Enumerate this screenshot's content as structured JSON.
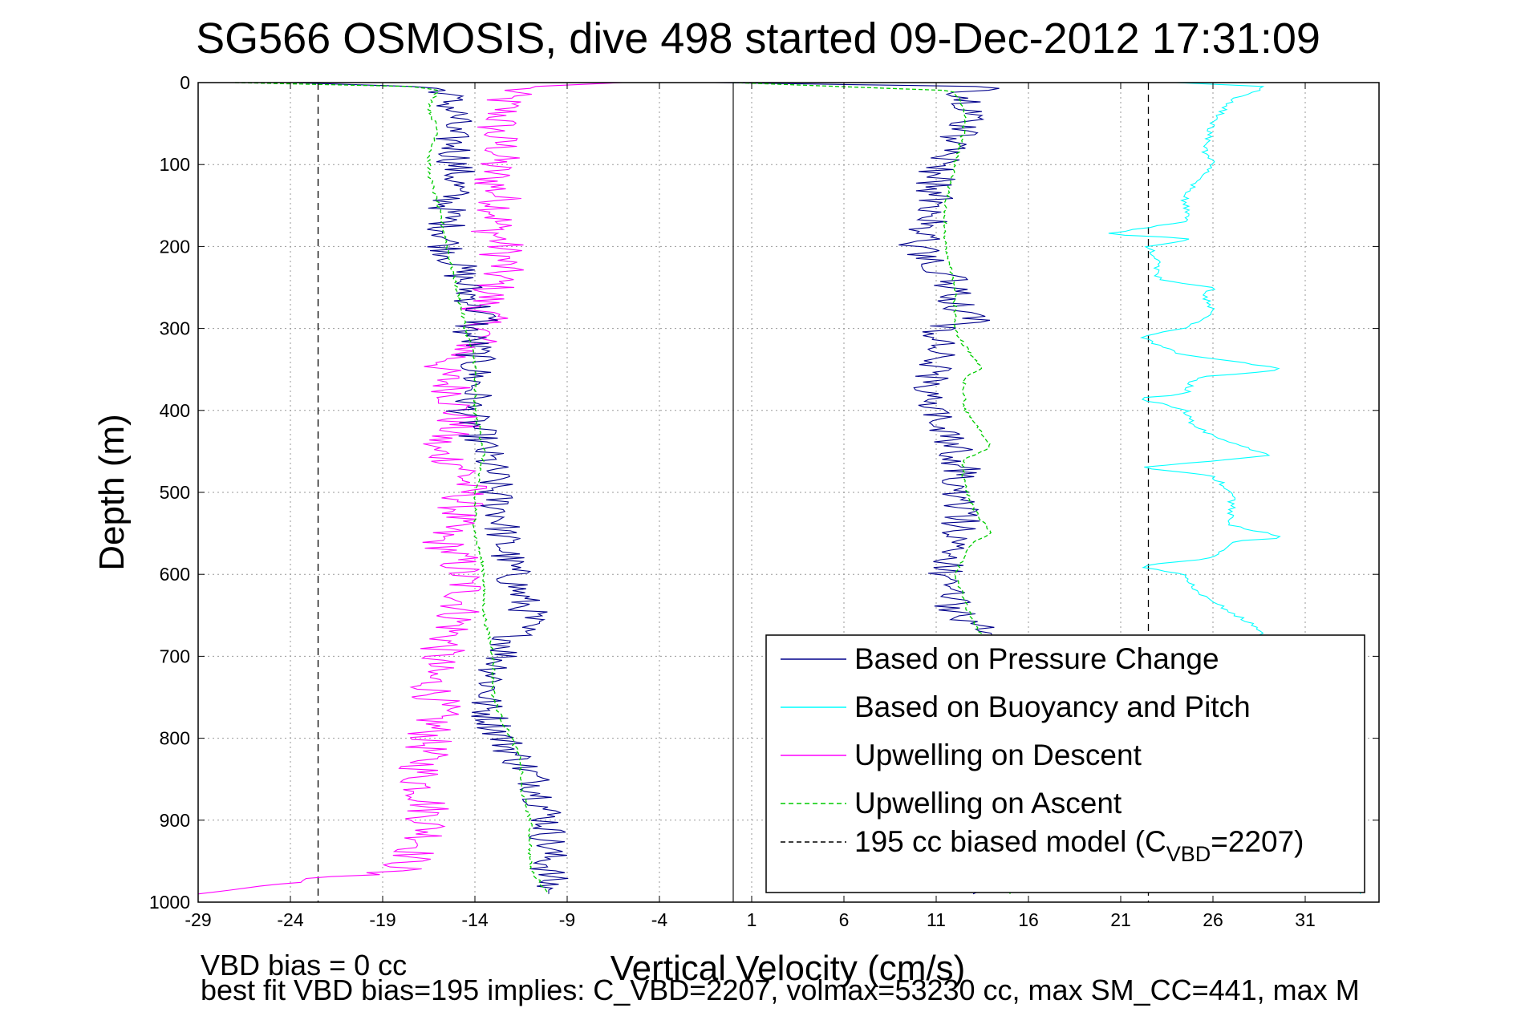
{
  "chart_data": {
    "type": "line",
    "title": "SG566 OSMOSIS, dive 498 started 09-Dec-2012 17:31:09",
    "xlabel": "Vertical Velocity (cm/s)",
    "ylabel": "Depth (m)",
    "xlim": [
      -29,
      35
    ],
    "ylim": [
      0,
      1000
    ],
    "y_reversed": true,
    "grid": true,
    "xticks": [
      -29,
      -24,
      -19,
      -14,
      -9,
      -4,
      1,
      6,
      11,
      16,
      21,
      26,
      31
    ],
    "yticks": [
      0,
      100,
      200,
      300,
      400,
      500,
      600,
      700,
      800,
      900,
      1000
    ],
    "legend_position": "bottom-right",
    "reference_lines": [
      {
        "name": "195 cc biased model (C_VBD=2207) descent",
        "x": -22.5
      },
      {
        "name": "195 cc biased model (C_VBD=2207) ascent",
        "x": 22.5
      },
      {
        "name": "zero velocity",
        "x": 0
      }
    ],
    "series": [
      {
        "name": "Based on Pressure Change",
        "color": "#00008B",
        "style": "solid",
        "descent": {
          "depth": [
            0,
            5,
            10,
            20,
            40,
            60,
            80,
            100,
            120,
            150,
            180,
            200,
            220,
            250,
            270,
            290,
            300,
            320,
            350,
            380,
            400,
            420,
            450,
            480,
            500,
            530,
            560,
            600,
            630,
            650,
            680,
            700,
            730,
            760,
            800,
            830,
            860,
            900,
            930,
            960,
            990
          ],
          "velocity": [
            -24,
            -17,
            -15.5,
            -15.5,
            -15,
            -15.5,
            -15,
            -15,
            -15,
            -15.5,
            -15.5,
            -15.5,
            -15,
            -14.5,
            -14,
            -13.5,
            -14.5,
            -14,
            -14,
            -14,
            -14.5,
            -14,
            -13.5,
            -13,
            -13,
            -12.5,
            -12.5,
            -12,
            -11.5,
            -11,
            -12,
            -12.5,
            -13,
            -13.5,
            -12.5,
            -11.5,
            -10.5,
            -10,
            -10,
            -10,
            -10
          ]
        },
        "ascent": {
          "depth": [
            990,
            970,
            940,
            900,
            860,
            820,
            780,
            740,
            700,
            680,
            660,
            640,
            600,
            580,
            560,
            530,
            500,
            470,
            450,
            420,
            400,
            380,
            350,
            320,
            300,
            290,
            270,
            250,
            220,
            200,
            180,
            150,
            120,
            100,
            80,
            50,
            30,
            15,
            5,
            0
          ],
          "velocity": [
            13,
            15,
            15,
            15,
            15,
            15,
            15,
            15,
            14.5,
            14,
            13,
            12,
            11.5,
            11.5,
            12,
            12.5,
            12,
            12.5,
            12,
            11.5,
            10.5,
            10.5,
            11,
            11,
            11,
            13,
            12,
            12,
            11,
            10,
            10.5,
            11,
            11,
            11,
            12,
            12.5,
            13,
            12.5,
            14,
            -1
          ]
        }
      },
      {
        "name": "Based on Buoyancy and Pitch",
        "color": "#00FFFF",
        "style": "solid",
        "ascent": {
          "depth": [
            990,
            960,
            920,
            880,
            840,
            800,
            760,
            720,
            690,
            660,
            620,
            600,
            590,
            580,
            560,
            555,
            540,
            500,
            480,
            470,
            455,
            440,
            420,
            400,
            385,
            380,
            360,
            350,
            330,
            310,
            300,
            280,
            260,
            250,
            240,
            220,
            200,
            190,
            185,
            170,
            140,
            120,
            100,
            80,
            50,
            20,
            5,
            0
          ],
          "velocity": [
            34,
            33.5,
            33,
            32.5,
            31.5,
            31,
            30.5,
            30,
            29.5,
            28,
            25,
            24.5,
            22,
            26,
            27,
            30,
            27,
            27,
            26,
            22,
            29,
            27,
            25,
            24.5,
            22,
            24.5,
            25,
            30,
            24,
            22,
            24.5,
            26,
            25.5,
            26,
            23,
            23,
            22.5,
            25,
            20,
            24.5,
            24.5,
            25,
            26,
            25.5,
            26,
            27,
            29,
            24
          ]
        }
      },
      {
        "name": "Upwelling on Descent",
        "color": "#FF00FF",
        "style": "solid",
        "descent": {
          "depth": [
            0,
            5,
            10,
            20,
            40,
            60,
            80,
            100,
            120,
            150,
            180,
            200,
            220,
            250,
            270,
            290,
            300,
            320,
            350,
            380,
            400,
            420,
            445,
            470,
            500,
            530,
            555,
            580,
            620,
            660,
            700,
            720,
            760,
            800,
            850,
            880,
            920,
            960,
            990
          ],
          "velocity": [
            -6,
            -11,
            -12,
            -12.5,
            -12.5,
            -13,
            -12.5,
            -13,
            -13,
            -12.5,
            -13,
            -12.5,
            -12.5,
            -13,
            -13.5,
            -13.5,
            -13.5,
            -14,
            -16,
            -15,
            -15,
            -15,
            -16.5,
            -14.5,
            -14.5,
            -15,
            -16,
            -15,
            -14.5,
            -15,
            -16,
            -16.5,
            -16,
            -16.5,
            -17,
            -16.5,
            -16.5,
            -18,
            -29
          ]
        }
      },
      {
        "name": "Upwelling on Ascent",
        "color": "#00CC00",
        "style": "dashed",
        "descent": {
          "depth": [
            0,
            5,
            10,
            30,
            60,
            90,
            110,
            150,
            200,
            250,
            300,
            340,
            400,
            450,
            500,
            550,
            600,
            650,
            700,
            750,
            780,
            800,
            830,
            860,
            900,
            960,
            990
          ],
          "velocity": [
            -27,
            -17,
            -16,
            -16.5,
            -16,
            -16.5,
            -16.5,
            -16,
            -15.5,
            -15,
            -14.5,
            -14,
            -14,
            -13.5,
            -14,
            -14,
            -13.5,
            -13.5,
            -13,
            -13,
            -12.5,
            -12,
            -11.5,
            -11.5,
            -11,
            -11,
            -10
          ]
        },
        "ascent": {
          "depth": [
            990,
            960,
            900,
            860,
            800,
            760,
            720,
            690,
            660,
            630,
            600,
            580,
            560,
            550,
            520,
            490,
            460,
            445,
            430,
            410,
            400,
            380,
            360,
            350,
            320,
            300,
            280,
            250,
            200,
            150,
            100,
            60,
            30,
            10,
            0
          ],
          "velocity": [
            15,
            15,
            15,
            15,
            15,
            15,
            14.5,
            14,
            13,
            12.5,
            12,
            12.5,
            13,
            14,
            13,
            12.5,
            12.5,
            14,
            13.5,
            13,
            12.5,
            12.5,
            12.5,
            13.5,
            12.5,
            12,
            12,
            12,
            11.5,
            11.5,
            12,
            12.5,
            12.5,
            12,
            0
          ]
        }
      },
      {
        "name": "195 cc biased model (C_VBD=2207)",
        "color": "#000000",
        "style": "dashed"
      }
    ]
  },
  "legend": {
    "items": [
      {
        "label": "Based on Pressure Change",
        "color": "#00008B",
        "dash": ""
      },
      {
        "label": "Based on Buoyancy and Pitch",
        "color": "#00FFFF",
        "dash": ""
      },
      {
        "label": "Upwelling on Descent",
        "color": "#FF00FF",
        "dash": ""
      },
      {
        "label": "Upwelling on Ascent",
        "color": "#00CC00",
        "dash": "6,4"
      },
      {
        "label_main": "195 cc biased model (C",
        "label_sub": "VBD",
        "label_tail": "=2207)",
        "color": "#000000",
        "dash": "6,4"
      }
    ]
  },
  "notes": {
    "line1": "VBD bias = 0 cc",
    "line2": "best fit VBD bias=195 implies: C_VBD=2207, volmax=53230 cc, max SM_CC=441, max M"
  }
}
